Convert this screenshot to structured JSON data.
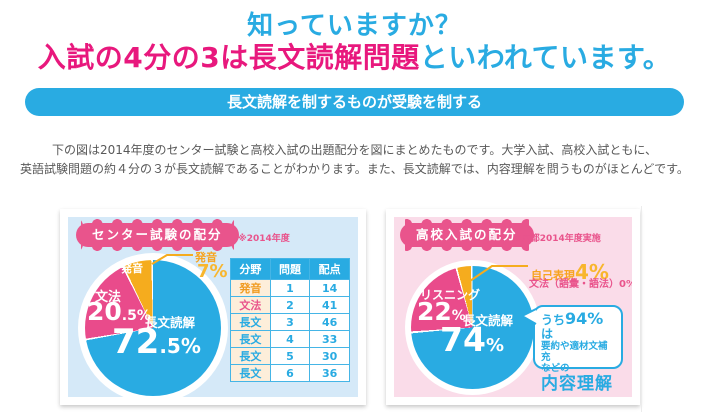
{
  "header": {
    "title_line1": "知っていますか？",
    "title_line2_highlight": "入試の4分の3は長文読解問題",
    "title_line2_rest": "といわれています。",
    "banner": "長文読解を制するものが受験を制する"
  },
  "intro": {
    "line1": "下の図は2014年度のセンター試験と高校入試の出題配分を図にまとめたものです。大学入試、高校入試ともに、",
    "line2": "英語試験問題の約４分の３が長文読解であることがわかります。また、長文読解では、内容理解を問うものがほとんどです。"
  },
  "center_panel": {
    "badge": "センター試験の配分",
    "note": "※2014年度",
    "pie": {
      "slice1_label": "長文読解",
      "slice1_value_int": "72",
      "slice1_value_frac": ".5%",
      "slice2_label": "文法",
      "slice2_value_int": "20",
      "slice2_value_frac": ".5%",
      "slice3_label": "発音",
      "callout_label": "発音",
      "callout_value": "7%"
    },
    "table": {
      "headers": [
        "分野",
        "問題",
        "配点"
      ],
      "rows": [
        {
          "subject": "発音",
          "color": "orange",
          "no": "1",
          "points": "14"
        },
        {
          "subject": "文法",
          "color": "pink",
          "no": "2",
          "points": "41"
        },
        {
          "subject": "長文",
          "color": "blue",
          "no": "3",
          "points": "46"
        },
        {
          "subject": "長文",
          "color": "blue",
          "no": "4",
          "points": "33"
        },
        {
          "subject": "長文",
          "color": "blue",
          "no": "5",
          "points": "30"
        },
        {
          "subject": "長文",
          "color": "blue",
          "no": "6",
          "points": "36"
        }
      ]
    }
  },
  "hs_panel": {
    "badge": "高校入試の配分",
    "note": "※東京都2014年度実施",
    "pie": {
      "slice1_label": "長文読解",
      "slice1_value_int": "74",
      "slice1_value_unit": "%",
      "slice2_label": "リスニング",
      "slice2_value_int": "22",
      "slice2_value_unit": "%",
      "callout1_label": "自己表現",
      "callout1_value": "4%",
      "callout2": "文法（語彙・語法）0%"
    },
    "bubble": {
      "line1_pre": "うち",
      "line1_big": "94%",
      "line1_post": "は",
      "line2": "要約や適材文補充",
      "line3": "などの",
      "line4": "内容理解"
    }
  },
  "colors": {
    "accent_blue": "#29abe2",
    "accent_magenta": "#e8187d",
    "badge_pink": "#e9548c",
    "pie_blue": "#29abe2",
    "pie_pink": "#e94b8b",
    "pie_orange": "#f5ac1e",
    "panel_blue_bg": "#d5e9f8",
    "panel_pink_bg": "#fadce9",
    "table_first_col_bg": "#fdeeda"
  },
  "chart_data": [
    {
      "type": "pie",
      "title": "センター試験の配分",
      "note": "※2014年度",
      "labels": [
        "長文読解",
        "文法",
        "発音"
      ],
      "values": [
        72.5,
        20.5,
        7
      ],
      "unit": "%",
      "colors": [
        "#29abe2",
        "#e94b8b",
        "#f5ac1e"
      ]
    },
    {
      "type": "pie",
      "title": "高校入試の配分",
      "note": "※東京都2014年度実施",
      "labels": [
        "長文読解",
        "リスニング",
        "自己表現",
        "文法（語彙・語法）"
      ],
      "values": [
        74,
        22,
        4,
        0
      ],
      "unit": "%",
      "colors": [
        "#29abe2",
        "#e94b8b",
        "#f5ac1e",
        null
      ],
      "annotation": "うち94%は要約や適材文補充などの内容理解"
    },
    {
      "type": "table",
      "title": "センター試験の配分（分野・問題・配点）",
      "columns": [
        "分野",
        "問題",
        "配点"
      ],
      "rows": [
        [
          "発音",
          "1",
          "14"
        ],
        [
          "文法",
          "2",
          "41"
        ],
        [
          "長文",
          "3",
          "46"
        ],
        [
          "長文",
          "4",
          "33"
        ],
        [
          "長文",
          "5",
          "30"
        ],
        [
          "長文",
          "6",
          "36"
        ]
      ]
    }
  ]
}
